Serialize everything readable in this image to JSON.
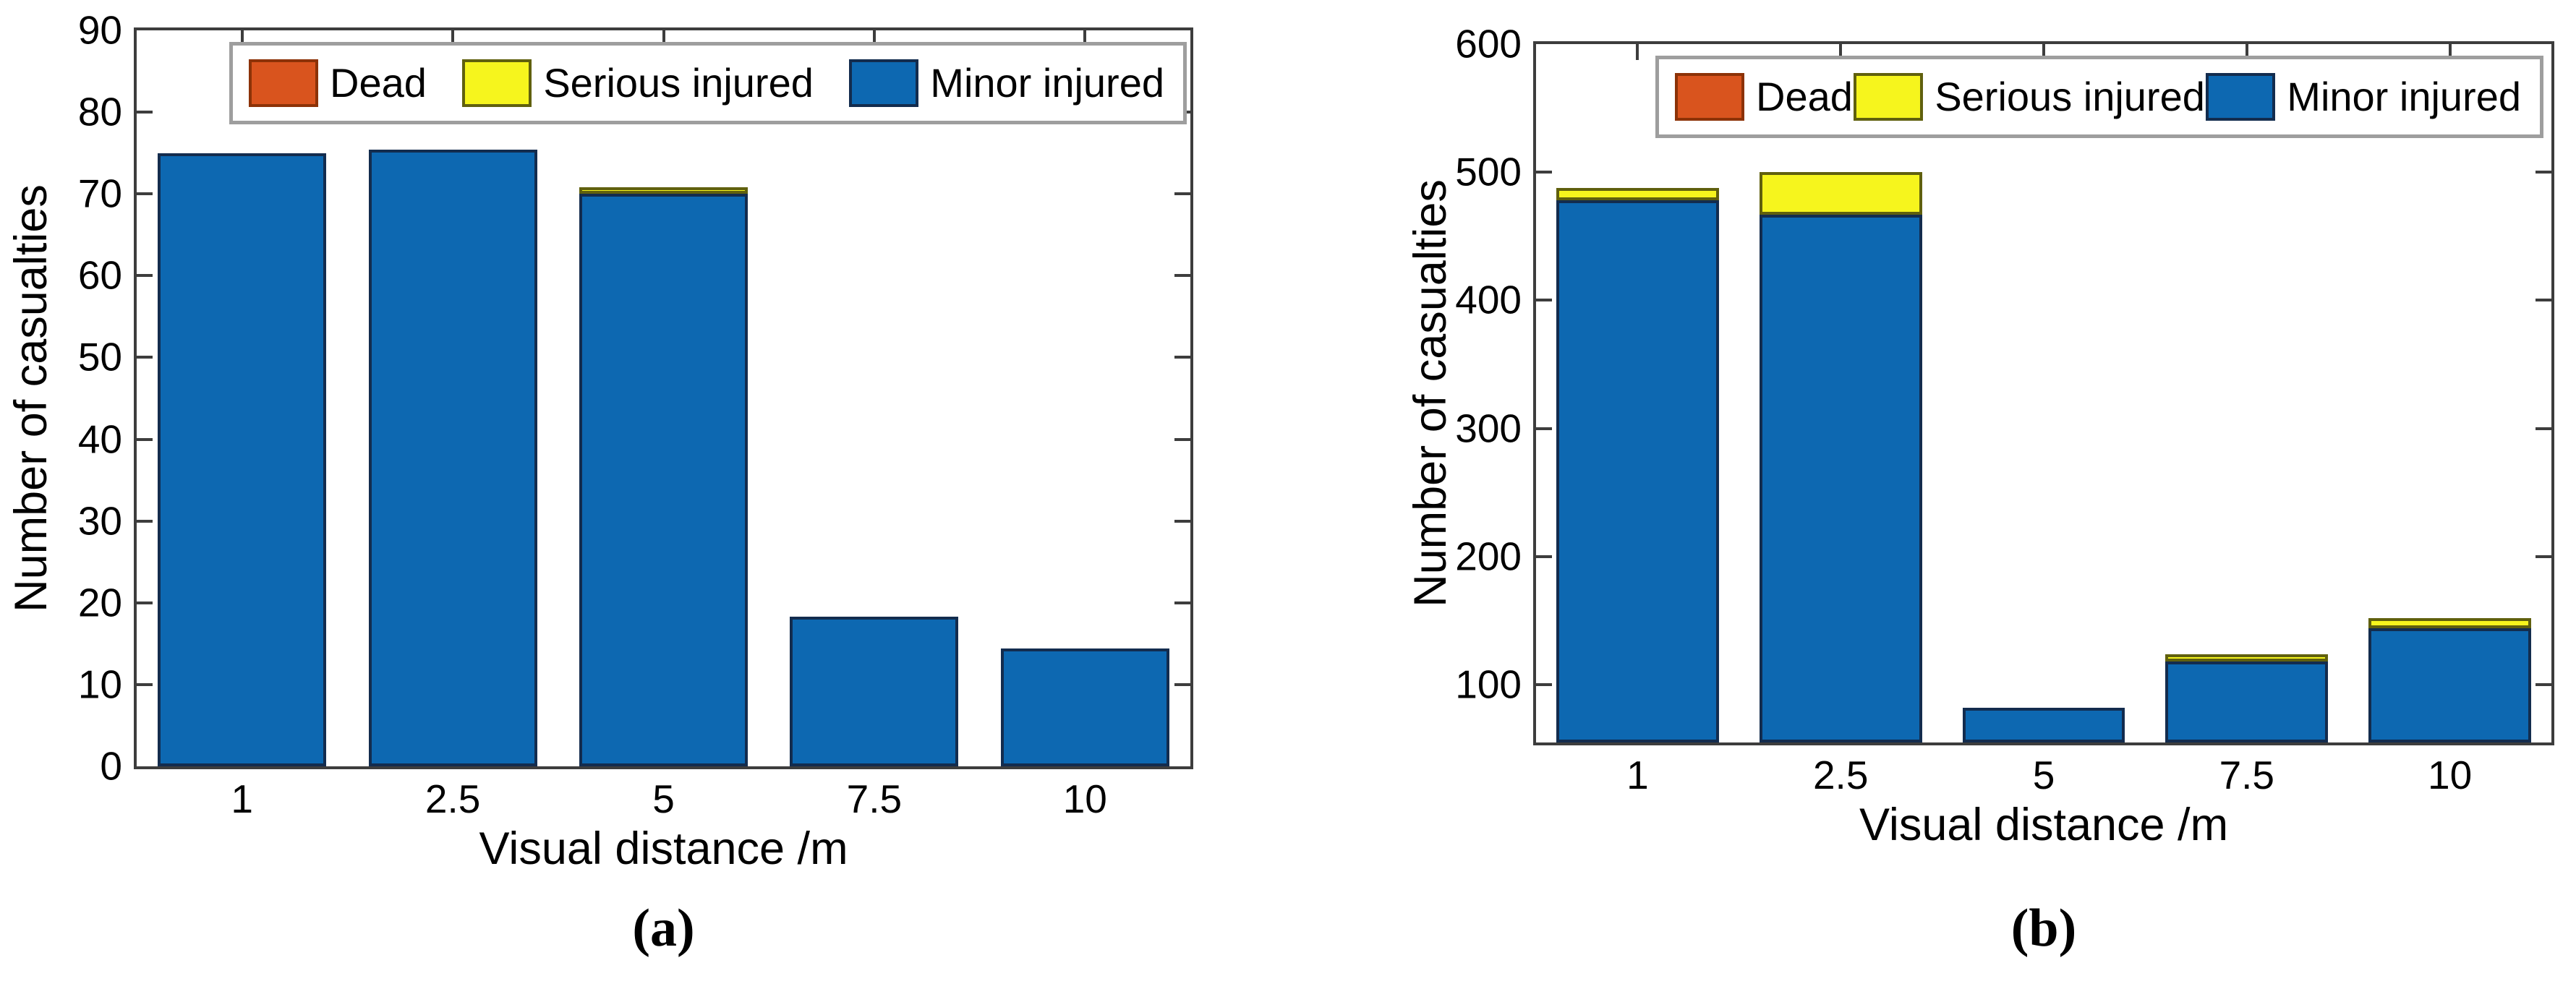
{
  "figure": {
    "background": "#ffffff",
    "panels": [
      {
        "caption": "(a)"
      },
      {
        "caption": "(b)"
      }
    ]
  },
  "colors": {
    "minor_blue": "#0d68b1",
    "minor_blue_edge": "#132c4e",
    "serious_yellow": "#f6f51d",
    "serious_yellow_edge": "#60600e",
    "dead_red": "#d9541e",
    "dead_red_edge": "#8c3207",
    "axis_frame": "#3d3d3d",
    "legend_border": "#9e9e9e"
  },
  "chart_data": [
    {
      "type": "bar",
      "stacked": true,
      "title": "",
      "xlabel": "Visual distance /m",
      "ylabel": "Number of casualties",
      "categories": [
        "1",
        "2.5",
        "5",
        "7.5",
        "10"
      ],
      "series": [
        {
          "name": "Dead",
          "color": "#d9541e",
          "edge": "#8c3207",
          "values": [
            0,
            0,
            0,
            0,
            0
          ]
        },
        {
          "name": "Serious injured",
          "color": "#f6f51d",
          "edge": "#60600e",
          "values": [
            0,
            0,
            0.8,
            0,
            0
          ]
        },
        {
          "name": "Minor injured",
          "color": "#0d68b1",
          "edge": "#132c4e",
          "values": [
            75,
            75.4,
            70,
            18.3,
            14.4
          ]
        }
      ],
      "stack_order_bottom_to_top": [
        "Minor injured",
        "Serious injured",
        "Dead"
      ],
      "ylim": [
        0,
        90
      ],
      "yticks": [
        0,
        10,
        20,
        30,
        40,
        50,
        60,
        70,
        80,
        90
      ],
      "bar_width": 0.8,
      "grid": false,
      "legend_position": "top-inside"
    },
    {
      "type": "bar",
      "stacked": true,
      "title": "",
      "xlabel": "Visual distance /m",
      "ylabel": "Number of casualties",
      "categories": [
        "1",
        "2.5",
        "5",
        "7.5",
        "10"
      ],
      "series": [
        {
          "name": "Dead",
          "color": "#d9541e",
          "edge": "#8c3207",
          "values": [
            0,
            0,
            0,
            0,
            0
          ]
        },
        {
          "name": "Serious injured",
          "color": "#f6f51d",
          "edge": "#60600e",
          "values": [
            10,
            33,
            0,
            6,
            8
          ]
        },
        {
          "name": "Minor injured",
          "color": "#0d68b1",
          "edge": "#132c4e",
          "values": [
            478,
            467,
            82,
            118,
            144
          ]
        }
      ],
      "stack_order_bottom_to_top": [
        "Minor injured",
        "Serious injured",
        "Dead"
      ],
      "ylim": [
        55,
        600
      ],
      "yticks": [
        100,
        200,
        300,
        400,
        500,
        600
      ],
      "bar_width": 0.8,
      "grid": false,
      "legend_position": "top-inside"
    }
  ]
}
